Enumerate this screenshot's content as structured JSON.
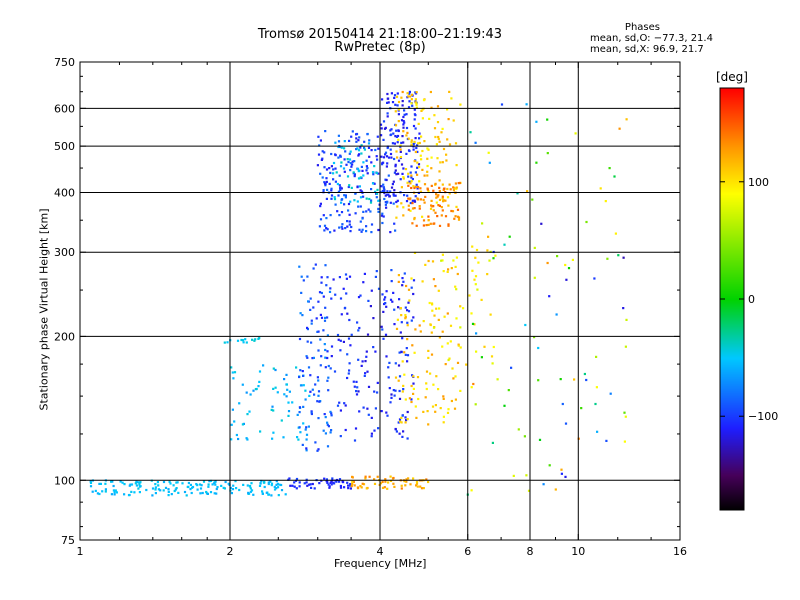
{
  "header": {
    "title": "Tromsø 20150414 21:18:00–21:19:43",
    "subtitle": "RwPretec (8p)"
  },
  "stats": {
    "heading": "Phases",
    "line_o": "mean, sd,O: −77.3, 21.4",
    "line_x": "mean, sd,X:  96.9, 21.7"
  },
  "colorbar": {
    "unit": "[deg]",
    "ticks": [
      {
        "value": 100,
        "label": "100"
      },
      {
        "value": 0,
        "label": "0"
      },
      {
        "value": -100,
        "label": "−100"
      }
    ],
    "range": [
      -180,
      180
    ]
  },
  "chart_data": {
    "type": "scatter",
    "xlabel": "Frequency [MHz]",
    "ylabel": "Stationary phase Virtual Height [km]",
    "x_scale": "log",
    "y_scale": "log",
    "xlim": [
      1,
      16
    ],
    "ylim": [
      75,
      750
    ],
    "x_ticks": [
      {
        "value": 1,
        "label": "1"
      },
      {
        "value": 2,
        "label": "2"
      },
      {
        "value": 4,
        "label": "4"
      },
      {
        "value": 6,
        "label": "6"
      },
      {
        "value": 8,
        "label": "8"
      },
      {
        "value": 10,
        "label": "10"
      },
      {
        "value": 16,
        "label": "16"
      }
    ],
    "x_grid": [
      2,
      4,
      6,
      8,
      10
    ],
    "y_ticks": [
      {
        "value": 75,
        "label": "75"
      },
      {
        "value": 100,
        "label": "100"
      },
      {
        "value": 200,
        "label": "200"
      },
      {
        "value": 300,
        "label": "300"
      },
      {
        "value": 400,
        "label": "400"
      },
      {
        "value": 500,
        "label": "500"
      },
      {
        "value": 600,
        "label": "600"
      },
      {
        "value": 750,
        "label": "750"
      }
    ],
    "y_grid": [
      100,
      200,
      300,
      400,
      500,
      600
    ],
    "grid": true,
    "color_value": "phase (deg)",
    "clusters": [
      {
        "f": [
          1.05,
          2.6
        ],
        "h": [
          93,
          100
        ],
        "phase": [
          -60,
          -45
        ],
        "n": 170
      },
      {
        "f": [
          2.6,
          3.5
        ],
        "h": [
          96,
          101
        ],
        "phase": [
          -115,
          -95
        ],
        "n": 55
      },
      {
        "f": [
          3.5,
          5.0
        ],
        "h": [
          96,
          102
        ],
        "phase": [
          105,
          140
        ],
        "n": 60
      },
      {
        "f": [
          1.95,
          2.3
        ],
        "h": [
          194,
          199
        ],
        "phase": [
          -50,
          -40
        ],
        "n": 14
      },
      {
        "f": [
          2.0,
          2.9
        ],
        "h": [
          120,
          175
        ],
        "phase": [
          -70,
          -40
        ],
        "n": 70
      },
      {
        "f": [
          2.75,
          3.2
        ],
        "h": [
          115,
          285
        ],
        "phase": [
          -110,
          -70
        ],
        "n": 110
      },
      {
        "f": [
          3.2,
          4.7
        ],
        "h": [
          120,
          280
        ],
        "phase": [
          -120,
          -90
        ],
        "n": 170
      },
      {
        "f": [
          4.3,
          5.8
        ],
        "h": [
          130,
          300
        ],
        "phase": [
          90,
          130
        ],
        "n": 110
      },
      {
        "f": [
          5.0,
          6.9
        ],
        "h": [
          150,
          320
        ],
        "phase": [
          70,
          110
        ],
        "n": 45
      },
      {
        "f": [
          3.0,
          4.3
        ],
        "h": [
          330,
          540
        ],
        "phase": [
          -115,
          -80
        ],
        "n": 220
      },
      {
        "f": [
          3.2,
          4.0
        ],
        "h": [
          380,
          520
        ],
        "phase": [
          -60,
          -35
        ],
        "n": 50
      },
      {
        "f": [
          4.0,
          4.8
        ],
        "h": [
          380,
          650
        ],
        "phase": [
          -120,
          -95
        ],
        "n": 150
      },
      {
        "f": [
          4.3,
          5.8
        ],
        "h": [
          350,
          650
        ],
        "phase": [
          90,
          130
        ],
        "n": 150
      },
      {
        "f": [
          4.5,
          5.8
        ],
        "h": [
          340,
          420
        ],
        "phase": [
          120,
          150
        ],
        "n": 70
      },
      {
        "f": [
          6.0,
          12.5
        ],
        "h": [
          90,
          620
        ],
        "phase": [
          -130,
          140
        ],
        "n": 90
      }
    ]
  }
}
